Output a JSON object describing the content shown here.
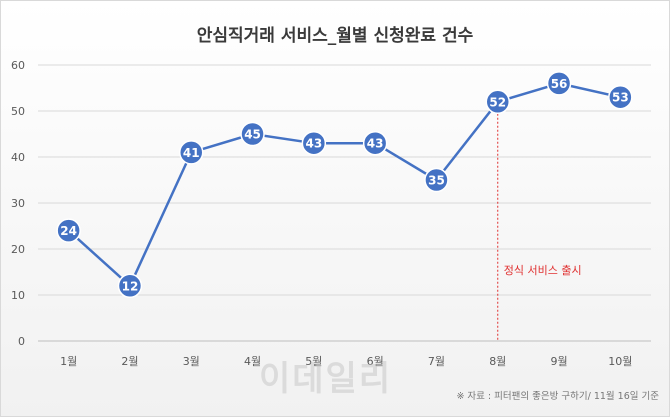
{
  "chart_data": {
    "type": "line",
    "title": "안심직거래 서비스_월별 신청완료 건수",
    "categories": [
      "1월",
      "2월",
      "3월",
      "4월",
      "5월",
      "6월",
      "7월",
      "8월",
      "9월",
      "10월"
    ],
    "values": [
      24,
      12,
      41,
      45,
      43,
      43,
      35,
      52,
      56,
      53
    ],
    "ylim": [
      0,
      60
    ],
    "yticks": [
      0,
      10,
      20,
      30,
      40,
      50,
      60
    ],
    "grid": true,
    "legend": "none",
    "annotation": {
      "text": "정식 서비스 출시",
      "at_category": "8월",
      "color": "#e03030"
    },
    "line_color": "#4472c4"
  },
  "source": "※ 자료 : 피터팬의 좋은방 구하기/ 11월 16일 기준",
  "watermark": "이데일리"
}
